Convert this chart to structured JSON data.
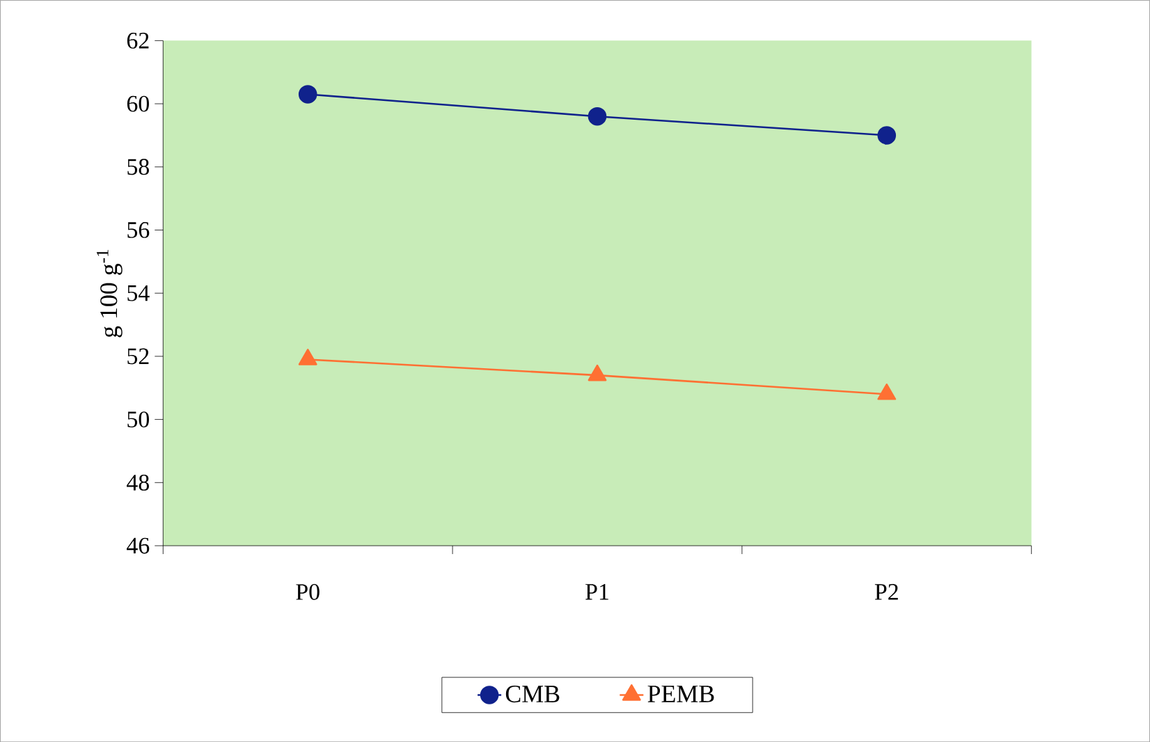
{
  "chart_data": {
    "type": "line",
    "ylabel": "g 100 g$^{-1}$",
    "categories": [
      "P0",
      "P1",
      "P2"
    ],
    "series": [
      {
        "name": "CMB",
        "color": "#10228c",
        "marker": "circle",
        "values": [
          60.3,
          59.6,
          59.0
        ]
      },
      {
        "name": "PEMB",
        "color": "#ff7033",
        "marker": "triangle",
        "values": [
          51.9,
          51.4,
          50.8
        ]
      }
    ],
    "ylim": [
      46,
      62
    ],
    "yticks": [
      46,
      48,
      50,
      52,
      54,
      56,
      58,
      60,
      62
    ],
    "grid": false,
    "legend": "bottom",
    "line_style": "solid"
  }
}
